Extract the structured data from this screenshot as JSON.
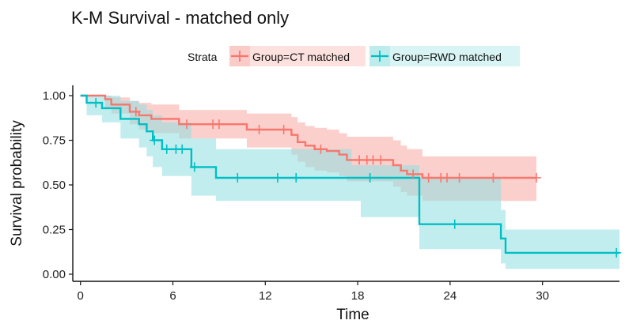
{
  "chart_data": {
    "type": "line",
    "step": true,
    "title": "K-M Survival - matched only",
    "xlabel": "Time",
    "ylabel": "Survival probability",
    "xlim": [
      -0.5,
      35
    ],
    "ylim": [
      -0.04,
      1.04
    ],
    "xticks": [
      0,
      6,
      12,
      18,
      24,
      30
    ],
    "yticks": [
      0.0,
      0.25,
      0.5,
      0.75,
      1.0
    ],
    "ytick_labels": [
      "0.00",
      "0.25",
      "0.50",
      "0.75",
      "1.00"
    ],
    "grid": false,
    "legend": {
      "title": "Strata",
      "placement": "top"
    },
    "series": [
      {
        "name": "Group=CT matched",
        "color": "#f8766d",
        "ci_color": "#f8a9a3",
        "steps": [
          [
            0,
            1.0
          ],
          [
            1.6,
            0.98
          ],
          [
            2.0,
            0.95
          ],
          [
            3.2,
            0.91
          ],
          [
            3.8,
            0.89
          ],
          [
            4.6,
            0.87
          ],
          [
            6.4,
            0.84
          ],
          [
            10.8,
            0.81
          ],
          [
            13.7,
            0.78
          ],
          [
            14.1,
            0.74
          ],
          [
            14.6,
            0.72
          ],
          [
            15.2,
            0.7
          ],
          [
            16.0,
            0.69
          ],
          [
            16.8,
            0.67
          ],
          [
            17.3,
            0.64
          ],
          [
            20.3,
            0.61
          ],
          [
            20.8,
            0.58
          ],
          [
            21.2,
            0.56
          ],
          [
            22.2,
            0.54
          ],
          [
            29.6,
            0.54
          ]
        ],
        "ci_lower": [
          [
            0,
            1.0
          ],
          [
            1.6,
            0.93
          ],
          [
            2.0,
            0.9
          ],
          [
            3.2,
            0.84
          ],
          [
            3.8,
            0.81
          ],
          [
            4.6,
            0.79
          ],
          [
            6.4,
            0.76
          ],
          [
            10.8,
            0.71
          ],
          [
            13.7,
            0.67
          ],
          [
            14.1,
            0.63
          ],
          [
            14.6,
            0.6
          ],
          [
            15.2,
            0.58
          ],
          [
            16.0,
            0.57
          ],
          [
            16.8,
            0.55
          ],
          [
            17.3,
            0.52
          ],
          [
            20.3,
            0.49
          ],
          [
            20.8,
            0.46
          ],
          [
            21.2,
            0.44
          ],
          [
            22.2,
            0.41
          ],
          [
            29.6,
            0.41
          ]
        ],
        "ci_upper": [
          [
            0,
            1.0
          ],
          [
            1.6,
            1.0
          ],
          [
            2.0,
            0.99
          ],
          [
            3.2,
            0.97
          ],
          [
            3.8,
            0.96
          ],
          [
            4.6,
            0.95
          ],
          [
            6.4,
            0.92
          ],
          [
            10.8,
            0.9
          ],
          [
            13.7,
            0.88
          ],
          [
            14.1,
            0.85
          ],
          [
            14.6,
            0.83
          ],
          [
            15.2,
            0.82
          ],
          [
            16.0,
            0.81
          ],
          [
            16.8,
            0.79
          ],
          [
            17.3,
            0.77
          ],
          [
            20.3,
            0.75
          ],
          [
            20.8,
            0.72
          ],
          [
            21.2,
            0.7
          ],
          [
            22.2,
            0.66
          ],
          [
            29.6,
            0.66
          ]
        ],
        "censored": [
          [
            3.6,
            0.91
          ],
          [
            6.9,
            0.84
          ],
          [
            8.6,
            0.84
          ],
          [
            9.0,
            0.84
          ],
          [
            11.6,
            0.81
          ],
          [
            13.2,
            0.81
          ],
          [
            15.6,
            0.7
          ],
          [
            18.1,
            0.64
          ],
          [
            18.6,
            0.64
          ],
          [
            19.0,
            0.64
          ],
          [
            19.5,
            0.64
          ],
          [
            21.6,
            0.56
          ],
          [
            22.6,
            0.54
          ],
          [
            23.4,
            0.54
          ],
          [
            23.8,
            0.54
          ],
          [
            24.6,
            0.54
          ],
          [
            26.8,
            0.54
          ],
          [
            29.6,
            0.54
          ]
        ]
      },
      {
        "name": "Group=RWD matched",
        "color": "#00bfc4",
        "ci_color": "#8fdfe0",
        "steps": [
          [
            0,
            1.0
          ],
          [
            0.4,
            0.96
          ],
          [
            1.4,
            0.93
          ],
          [
            2.6,
            0.87
          ],
          [
            3.8,
            0.84
          ],
          [
            4.3,
            0.8
          ],
          [
            4.7,
            0.75
          ],
          [
            5.3,
            0.7
          ],
          [
            7.2,
            0.6
          ],
          [
            8.8,
            0.54
          ],
          [
            22.0,
            0.28
          ],
          [
            27.3,
            0.2
          ],
          [
            27.6,
            0.12
          ],
          [
            35.0,
            0.12
          ]
        ],
        "ci_lower": [
          [
            0,
            1.0
          ],
          [
            0.4,
            0.89
          ],
          [
            1.4,
            0.85
          ],
          [
            2.6,
            0.76
          ],
          [
            3.8,
            0.71
          ],
          [
            4.3,
            0.66
          ],
          [
            4.7,
            0.6
          ],
          [
            5.3,
            0.55
          ],
          [
            7.2,
            0.44
          ],
          [
            8.8,
            0.41
          ],
          [
            18.2,
            0.32
          ],
          [
            22.0,
            0.14
          ],
          [
            27.3,
            0.06
          ],
          [
            27.6,
            0.03
          ],
          [
            35.0,
            0.03
          ]
        ],
        "ci_upper": [
          [
            0,
            1.0
          ],
          [
            0.4,
            1.0
          ],
          [
            1.4,
            1.0
          ],
          [
            2.6,
            0.97
          ],
          [
            3.8,
            0.95
          ],
          [
            4.3,
            0.92
          ],
          [
            4.7,
            0.89
          ],
          [
            5.3,
            0.85
          ],
          [
            7.2,
            0.76
          ],
          [
            8.8,
            0.7
          ],
          [
            17.6,
            0.61
          ],
          [
            22.0,
            0.54
          ],
          [
            27.3,
            0.36
          ],
          [
            27.6,
            0.25
          ],
          [
            35.0,
            0.25
          ]
        ],
        "censored": [
          [
            1.0,
            0.96
          ],
          [
            4.8,
            0.75
          ],
          [
            5.6,
            0.7
          ],
          [
            6.2,
            0.7
          ],
          [
            6.6,
            0.7
          ],
          [
            7.4,
            0.6
          ],
          [
            10.2,
            0.54
          ],
          [
            12.8,
            0.54
          ],
          [
            14.0,
            0.54
          ],
          [
            18.8,
            0.54
          ],
          [
            24.3,
            0.28
          ],
          [
            34.8,
            0.12
          ]
        ]
      }
    ]
  }
}
